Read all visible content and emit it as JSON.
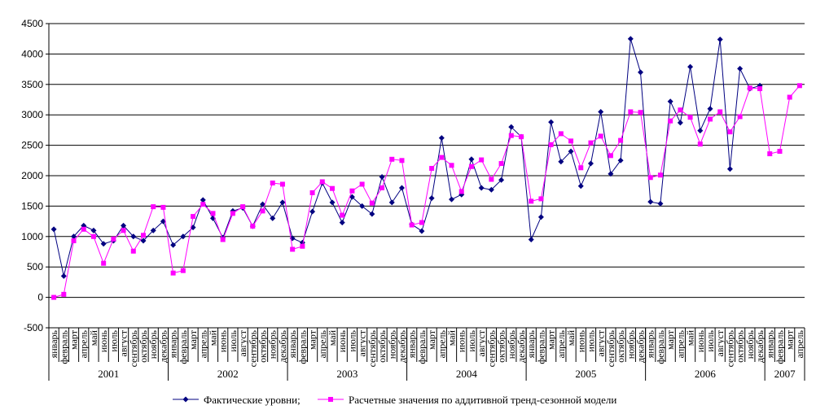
{
  "chart_data": {
    "type": "line",
    "categories": [
      "январь",
      "февраль",
      "март",
      "апрель",
      "май",
      "июнь",
      "июль",
      "август",
      "сентябрь",
      "октябрь",
      "ноябрь",
      "декабрь",
      "январь",
      "февраль",
      "март",
      "апрель",
      "май",
      "июнь",
      "июль",
      "август",
      "сентябрь",
      "октябрь",
      "ноябрь",
      "декабрь",
      "январь",
      "февраль",
      "март",
      "апрель",
      "май",
      "июнь",
      "июль",
      "август",
      "сентябрь",
      "октябрь",
      "ноябрь",
      "декабрь",
      "январь",
      "февраль",
      "март",
      "апрель",
      "май",
      "июнь",
      "июль",
      "август",
      "сентябрь",
      "октябрь",
      "ноябрь",
      "декабрь",
      "январь",
      "февраль",
      "март",
      "апрель",
      "май",
      "июнь",
      "июль",
      "август",
      "сентябрь",
      "октябрь",
      "ноябрь",
      "декабрь",
      "январь",
      "февраль",
      "март",
      "апрель",
      "май",
      "июнь",
      "июль",
      "август",
      "сентябрь",
      "октябрь",
      "ноябрь",
      "декабрь",
      "январь",
      "февраль",
      "март",
      "апрель"
    ],
    "years": [
      {
        "label": "2001",
        "months": 12
      },
      {
        "label": "2002",
        "months": 12
      },
      {
        "label": "2003",
        "months": 12
      },
      {
        "label": "2004",
        "months": 12
      },
      {
        "label": "2005",
        "months": 12
      },
      {
        "label": "2006",
        "months": 12
      },
      {
        "label": "2007",
        "months": 4
      }
    ],
    "yticks": [
      "-500",
      "0",
      "500",
      "1000",
      "1500",
      "2000",
      "2500",
      "3000",
      "3500",
      "4000",
      "4500"
    ],
    "ylim": [
      -500,
      4500
    ],
    "grid": "horizontal",
    "legend_position": "bottom",
    "series": [
      {
        "name": "Фактические уровни;",
        "color": "#000080",
        "marker": "diamond",
        "values": [
          1120,
          350,
          1000,
          1180,
          1100,
          880,
          930,
          1180,
          1000,
          930,
          1100,
          1250,
          860,
          1000,
          1150,
          1600,
          1300,
          980,
          1420,
          1470,
          1170,
          1530,
          1300,
          1560,
          970,
          900,
          1410,
          1880,
          1560,
          1230,
          1650,
          1500,
          1370,
          1980,
          1560,
          1800,
          1200,
          1090,
          1630,
          2620,
          1610,
          1690,
          2270,
          1800,
          1770,
          1930,
          2800,
          2640,
          950,
          1320,
          2880,
          2230,
          2400,
          1830,
          2200,
          3050,
          2030,
          2250,
          4250,
          3700,
          1570,
          1540,
          3220,
          2870,
          3790,
          2740,
          3100,
          4240,
          2110,
          3760,
          3430,
          3480,
          null,
          null,
          null,
          null
        ]
      },
      {
        "name": "Расчетные значения по аддитивной тренд-сезонной модели",
        "color": "#ff00ff",
        "marker": "square",
        "values": [
          0,
          50,
          930,
          1120,
          1000,
          560,
          960,
          1100,
          760,
          1020,
          1490,
          1480,
          400,
          440,
          1330,
          1530,
          1380,
          950,
          1380,
          1490,
          1170,
          1420,
          1880,
          1860,
          790,
          840,
          1720,
          1900,
          1790,
          1350,
          1750,
          1860,
          1550,
          1800,
          2270,
          2250,
          1190,
          1230,
          2120,
          2300,
          2170,
          1740,
          2150,
          2260,
          1940,
          2200,
          2660,
          2640,
          1580,
          1620,
          2510,
          2690,
          2570,
          2130,
          2540,
          2650,
          2330,
          2580,
          3050,
          3040,
          1970,
          2010,
          2900,
          3080,
          2960,
          2520,
          2930,
          3050,
          2720,
          2970,
          3440,
          3430,
          2360,
          2400,
          3290,
          3480
        ]
      }
    ]
  }
}
